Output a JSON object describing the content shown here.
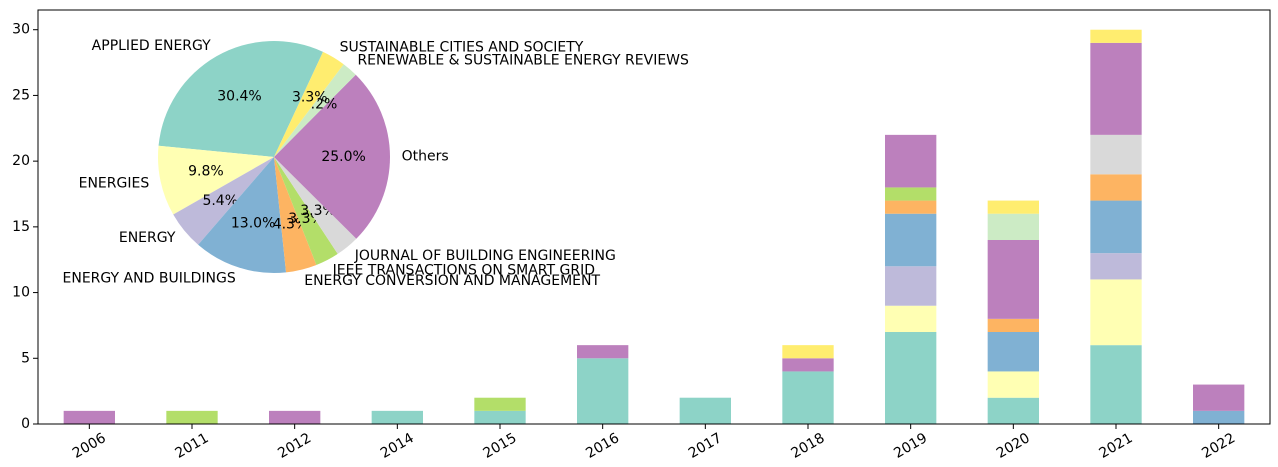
{
  "chart_data": [
    {
      "type": "bar",
      "categories": [
        "2006",
        "2011",
        "2012",
        "2014",
        "2015",
        "2016",
        "2017",
        "2018",
        "2019",
        "2020",
        "2021",
        "2022"
      ],
      "series": [
        {
          "name": "APPLIED ENERGY",
          "color": "#8dd3c7",
          "values": [
            0,
            0,
            0,
            1,
            1,
            5,
            2,
            4,
            7,
            2,
            6,
            0
          ]
        },
        {
          "name": "ENERGIES",
          "color": "#ffffb3",
          "values": [
            0,
            0,
            0,
            0,
            0,
            0,
            0,
            0,
            2,
            2,
            5,
            0
          ]
        },
        {
          "name": "ENERGY",
          "color": "#bebada",
          "values": [
            0,
            0,
            0,
            0,
            0,
            0,
            0,
            0,
            3,
            0,
            2,
            0
          ]
        },
        {
          "name": "ENERGY AND BUILDINGS",
          "color": "#80b1d3",
          "values": [
            0,
            0,
            0,
            0,
            0,
            0,
            0,
            0,
            4,
            3,
            4,
            1
          ]
        },
        {
          "name": "ENERGY CONVERSION AND MANAGEMENT",
          "color": "#fdb462",
          "values": [
            0,
            0,
            0,
            0,
            0,
            0,
            0,
            0,
            1,
            1,
            2,
            0
          ]
        },
        {
          "name": "IEEE TRANSACTIONS ON SMART GRID",
          "color": "#b3de69",
          "values": [
            0,
            1,
            0,
            0,
            1,
            0,
            0,
            0,
            1,
            0,
            0,
            0
          ]
        },
        {
          "name": "JOURNAL OF BUILDING ENGINEERING",
          "color": "#d9d9d9",
          "values": [
            0,
            0,
            0,
            0,
            0,
            0,
            0,
            0,
            0,
            0,
            3,
            0
          ]
        },
        {
          "name": "Others",
          "color": "#bc80bd",
          "values": [
            1,
            0,
            1,
            0,
            0,
            1,
            0,
            1,
            4,
            6,
            7,
            2
          ]
        },
        {
          "name": "RENEWABLE & SUSTAINABLE ENERGY REVIEWS",
          "color": "#ccebc5",
          "values": [
            0,
            0,
            0,
            0,
            0,
            0,
            0,
            0,
            0,
            2,
            0,
            0
          ]
        },
        {
          "name": "SUSTAINABLE CITIES AND SOCIETY",
          "color": "#ffed6f",
          "values": [
            0,
            0,
            0,
            0,
            0,
            0,
            0,
            1,
            0,
            1,
            1,
            0
          ]
        }
      ],
      "ylim": [
        0,
        31.5
      ],
      "yticks": [
        0,
        5,
        10,
        15,
        20,
        25,
        30
      ]
    },
    {
      "type": "pie",
      "labels": [
        "APPLIED ENERGY",
        "ENERGIES",
        "ENERGY",
        "ENERGY AND BUILDINGS",
        "ENERGY CONVERSION AND MANAGEMENT",
        "IEEE TRANSACTIONS ON SMART GRID",
        "JOURNAL OF BUILDING ENGINEERING",
        "Others",
        "RENEWABLE & SUSTAINABLE ENERGY REVIEWS",
        "SUSTAINABLE CITIES AND SOCIETY"
      ],
      "values": [
        30.4,
        9.8,
        5.4,
        13.0,
        4.3,
        3.3,
        3.3,
        25.0,
        2.2,
        3.3
      ],
      "value_labels": [
        "30.4%",
        "9.8%",
        "5.4%",
        "13.0%",
        "4.3%",
        "3.3%",
        "3.3%",
        "25.0%",
        "2.2%",
        "3.3%"
      ],
      "colors": [
        "#8dd3c7",
        "#ffffb3",
        "#bebada",
        "#80b1d3",
        "#fdb462",
        "#b3de69",
        "#d9d9d9",
        "#bc80bd",
        "#ccebc5",
        "#ffed6f"
      ]
    }
  ]
}
